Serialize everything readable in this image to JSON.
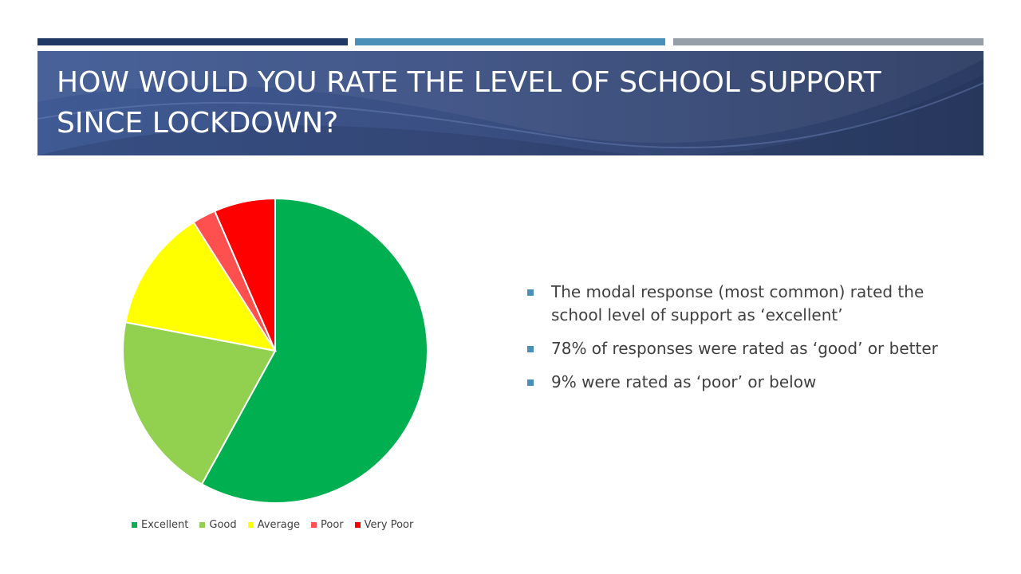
{
  "slide": {
    "title": "HOW WOULD YOU RATE THE LEVEL OF SCHOOL SUPPORT SINCE LOCKDOWN?",
    "accent_colors": [
      "#1f3864",
      "#4a8fb8",
      "#969ea8"
    ],
    "title_band_color": "#3b4f80"
  },
  "bullets": [
    {
      "text": "The modal response (most common) rated the school level of support as ‘excellent’",
      "marker_color": "#4a90b8"
    },
    {
      "text": "78% of responses were rated as ‘good’ or better",
      "marker_color": "#4a90b8"
    },
    {
      "text": "9% were rated as ‘poor’ or below",
      "marker_color": "#4a90b8"
    }
  ],
  "chart_data": {
    "type": "pie",
    "title": "",
    "categories": [
      "Excellent",
      "Good",
      "Average",
      "Poor",
      "Very Poor"
    ],
    "values": [
      58,
      20,
      13,
      2.5,
      6.5
    ],
    "colors": [
      "#00b050",
      "#92d050",
      "#ffff00",
      "#ff5050",
      "#ff0000"
    ],
    "start": "12 o'clock, clockwise",
    "legend_position": "bottom"
  }
}
